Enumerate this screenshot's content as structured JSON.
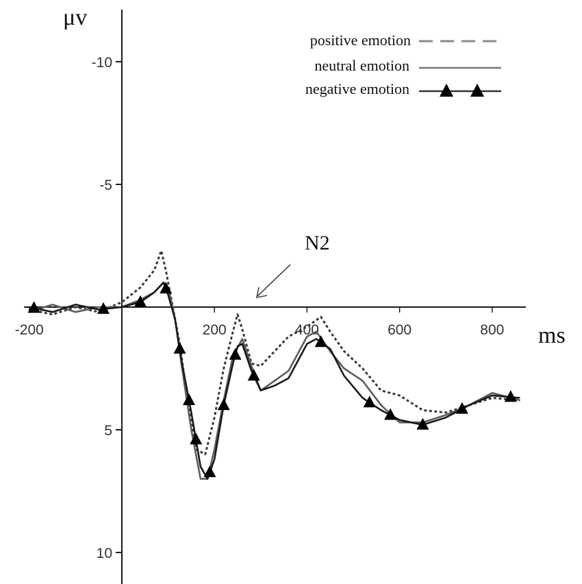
{
  "chart_data": {
    "type": "line",
    "xlabel": "ms",
    "ylabel": "μv",
    "xlim": [
      -200,
      860
    ],
    "ylim": [
      -12,
      10.5
    ],
    "y_inverted": true,
    "x_ticks": [
      {
        "value": -200,
        "label": "-200"
      },
      {
        "value": 200,
        "label": "200"
      },
      {
        "value": 400,
        "label": "400"
      },
      {
        "value": 600,
        "label": "600"
      },
      {
        "value": 800,
        "label": "800"
      }
    ],
    "y_ticks": [
      {
        "value": -10,
        "label": "-10"
      },
      {
        "value": -5,
        "label": "-5"
      },
      {
        "value": 5,
        "label": "5"
      },
      {
        "value": 10,
        "label": "10"
      }
    ],
    "annotations": [
      {
        "text": "N2",
        "x": 285,
        "y": 0
      }
    ],
    "legend_position": "top-right",
    "series": [
      {
        "name": "positive emotion",
        "style": "dashed",
        "color": "#333333",
        "x": [
          -200,
          -150,
          -100,
          -50,
          0,
          40,
          70,
          85,
          95,
          110,
          125,
          140,
          160,
          180,
          200,
          220,
          240,
          250,
          260,
          280,
          300,
          330,
          360,
          400,
          430,
          450,
          480,
          520,
          560,
          600,
          650,
          700,
          750,
          800,
          860
        ],
        "y": [
          0.1,
          0.3,
          0.0,
          0.2,
          -0.2,
          -0.8,
          -1.5,
          -2.3,
          -1.5,
          0.0,
          1.5,
          3.5,
          5.8,
          6.0,
          4.5,
          2.5,
          1.0,
          0.3,
          0.9,
          2.3,
          2.4,
          1.8,
          1.2,
          0.8,
          0.4,
          1.0,
          1.8,
          2.5,
          3.4,
          3.6,
          4.2,
          4.3,
          4.0,
          3.7,
          3.8
        ]
      },
      {
        "name": "neutral emotion",
        "style": "solid",
        "color": "#555555",
        "x": [
          -200,
          -150,
          -100,
          -50,
          0,
          40,
          70,
          90,
          100,
          115,
          130,
          150,
          170,
          185,
          200,
          220,
          240,
          260,
          280,
          300,
          330,
          360,
          400,
          420,
          450,
          480,
          520,
          560,
          600,
          650,
          700,
          750,
          800,
          860
        ],
        "y": [
          0.2,
          -0.1,
          0.2,
          0.0,
          0.0,
          -0.3,
          -0.6,
          -1.0,
          -0.8,
          0.5,
          2.5,
          5.0,
          7.0,
          7.0,
          5.8,
          3.8,
          2.0,
          1.3,
          2.4,
          3.4,
          3.0,
          2.6,
          1.2,
          1.0,
          1.8,
          2.5,
          3.0,
          4.0,
          4.7,
          4.7,
          4.4,
          4.0,
          3.5,
          3.8
        ]
      },
      {
        "name": "negative emotion",
        "style": "solid-triangles",
        "color": "#111111",
        "x": [
          -200,
          -150,
          -100,
          -50,
          0,
          40,
          70,
          90,
          100,
          115,
          130,
          150,
          170,
          185,
          200,
          220,
          240,
          250,
          260,
          280,
          300,
          330,
          360,
          380,
          400,
          420,
          450,
          480,
          520,
          560,
          600,
          650,
          700,
          750,
          800,
          860
        ],
        "y": [
          0.0,
          0.2,
          -0.1,
          0.1,
          0.0,
          -0.2,
          -0.6,
          -1.0,
          -0.5,
          0.5,
          2.3,
          4.3,
          6.5,
          7.0,
          6.2,
          4.0,
          2.3,
          1.6,
          1.5,
          2.6,
          3.4,
          3.2,
          2.9,
          2.2,
          1.5,
          1.3,
          1.7,
          2.8,
          3.7,
          4.2,
          4.6,
          4.8,
          4.5,
          4.0,
          3.6,
          3.7
        ]
      }
    ],
    "marker_x": [
      -190,
      -40,
      40,
      95,
      125,
      145,
      160,
      190,
      220,
      245,
      285,
      430,
      535,
      580,
      650,
      735,
      840
    ]
  }
}
